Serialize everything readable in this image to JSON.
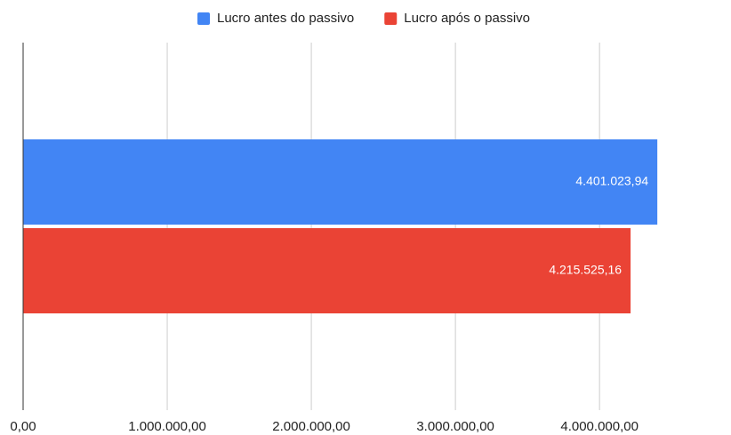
{
  "chart_data": {
    "type": "bar",
    "orientation": "horizontal",
    "categories": [
      null
    ],
    "series": [
      {
        "name": "Lucro antes do passivo",
        "color": "#4285f4",
        "values": [
          4401023.94
        ],
        "value_labels": [
          "4.401.023,94"
        ]
      },
      {
        "name": "Lucro após o passivo",
        "color": "#ea4335",
        "values": [
          4215525.16
        ],
        "value_labels": [
          "4.215.525,16"
        ]
      }
    ],
    "xlim": [
      0,
      4900000
    ],
    "xticks": [
      {
        "value": 0,
        "label": "0,00"
      },
      {
        "value": 1000000,
        "label": "1.000.000,00"
      },
      {
        "value": 2000000,
        "label": "2.000.000,00"
      },
      {
        "value": 3000000,
        "label": "3.000.000,00"
      },
      {
        "value": 4000000,
        "label": "4.000.000,00"
      }
    ],
    "grid": true,
    "legend": "top"
  }
}
